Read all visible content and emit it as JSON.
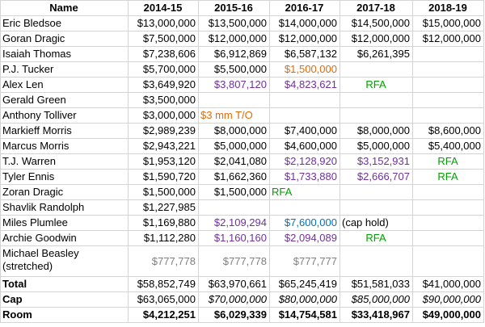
{
  "headers": [
    "Name",
    "2014-15",
    "2015-16",
    "2016-17",
    "2017-18",
    "2018-19"
  ],
  "rows": [
    {
      "name": "Eric Bledsoe",
      "c1": "$13,000,000",
      "c2": "$13,500,000",
      "c3": "$14,000,000",
      "c4": "$14,500,000",
      "c5": "$15,000,000"
    },
    {
      "name": "Goran Dragic",
      "c1": "$7,500,000",
      "c2": "$12,000,000",
      "c3": "$12,000,000",
      "c4": "$12,000,000",
      "c5": "$12,000,000"
    },
    {
      "name": "Isaiah Thomas",
      "c1": "$7,238,606",
      "c2": "$6,912,869",
      "c3": "$6,587,132",
      "c4": "$6,261,395",
      "c5": ""
    },
    {
      "name": "P.J. Tucker",
      "c1": "$5,700,000",
      "c2": "$5,500,000",
      "c3": "$1,500,000",
      "c4": "",
      "c5": ""
    },
    {
      "name": "Alex Len",
      "c1": "$3,649,920",
      "c2": "$3,807,120",
      "c3": "$4,823,621",
      "c4": "RFA",
      "c5": ""
    },
    {
      "name": "Gerald Green",
      "c1": "$3,500,000",
      "c2": "",
      "c3": "",
      "c4": "",
      "c5": ""
    },
    {
      "name": "Anthony Tolliver",
      "c1": "$3,000,000",
      "c2": "$3 mm T/O",
      "c3": "",
      "c4": "",
      "c5": ""
    },
    {
      "name": "Markieff Morris",
      "c1": "$2,989,239",
      "c2": "$8,000,000",
      "c3": "$7,400,000",
      "c4": "$8,000,000",
      "c5": "$8,600,000"
    },
    {
      "name": "Marcus Morris",
      "c1": "$2,943,221",
      "c2": "$5,000,000",
      "c3": "$4,600,000",
      "c4": "$5,000,000",
      "c5": "$5,400,000"
    },
    {
      "name": "T.J. Warren",
      "c1": "$1,953,120",
      "c2": "$2,041,080",
      "c3": "$2,128,920",
      "c4": "$3,152,931",
      "c5": "RFA"
    },
    {
      "name": "Tyler Ennis",
      "c1": "$1,590,720",
      "c2": "$1,662,360",
      "c3": "$1,733,880",
      "c4": "$2,666,707",
      "c5": "RFA"
    },
    {
      "name": "Zoran Dragic",
      "c1": "$1,500,000",
      "c2": "$1,500,000",
      "c3": "RFA",
      "c4": "",
      "c5": ""
    },
    {
      "name": "Shavlik Randolph",
      "c1": "$1,227,985",
      "c2": "",
      "c3": "",
      "c4": "",
      "c5": ""
    },
    {
      "name": "Miles Plumlee",
      "c1": "$1,169,880",
      "c2": "$2,109,294",
      "c3": "$7,600,000",
      "c4": "(cap hold)",
      "c5": ""
    },
    {
      "name": "Archie Goodwin",
      "c1": "$1,112,280",
      "c2": "$1,160,160",
      "c3": "$2,094,089",
      "c4": "RFA",
      "c5": ""
    },
    {
      "name": "Michael Beasley (stretched)",
      "c1": "$777,778",
      "c2": "$777,778",
      "c3": "$777,777",
      "c4": "",
      "c5": ""
    }
  ],
  "totals": [
    {
      "name": "Total",
      "c1": "$58,852,749",
      "c2": "$63,970,661",
      "c3": "$65,245,419",
      "c4": "$51,581,033",
      "c5": "$41,000,000"
    },
    {
      "name": "Cap",
      "c1": "$63,065,000",
      "c2": "$70,000,000",
      "c3": "$80,000,000",
      "c4": "$85,000,000",
      "c5": "$90,000,000"
    },
    {
      "name": "Room",
      "c1": "$4,212,251",
      "c2": "$6,029,339",
      "c3": "$14,754,581",
      "c4": "$33,418,967",
      "c5": "$49,000,000"
    }
  ],
  "colors": {
    "orange": "#e26b0a",
    "purple": "#7030a0",
    "green": "#00a000",
    "blue": "#0070c0",
    "gray": "#808080",
    "grid": "#d4d4d4"
  }
}
